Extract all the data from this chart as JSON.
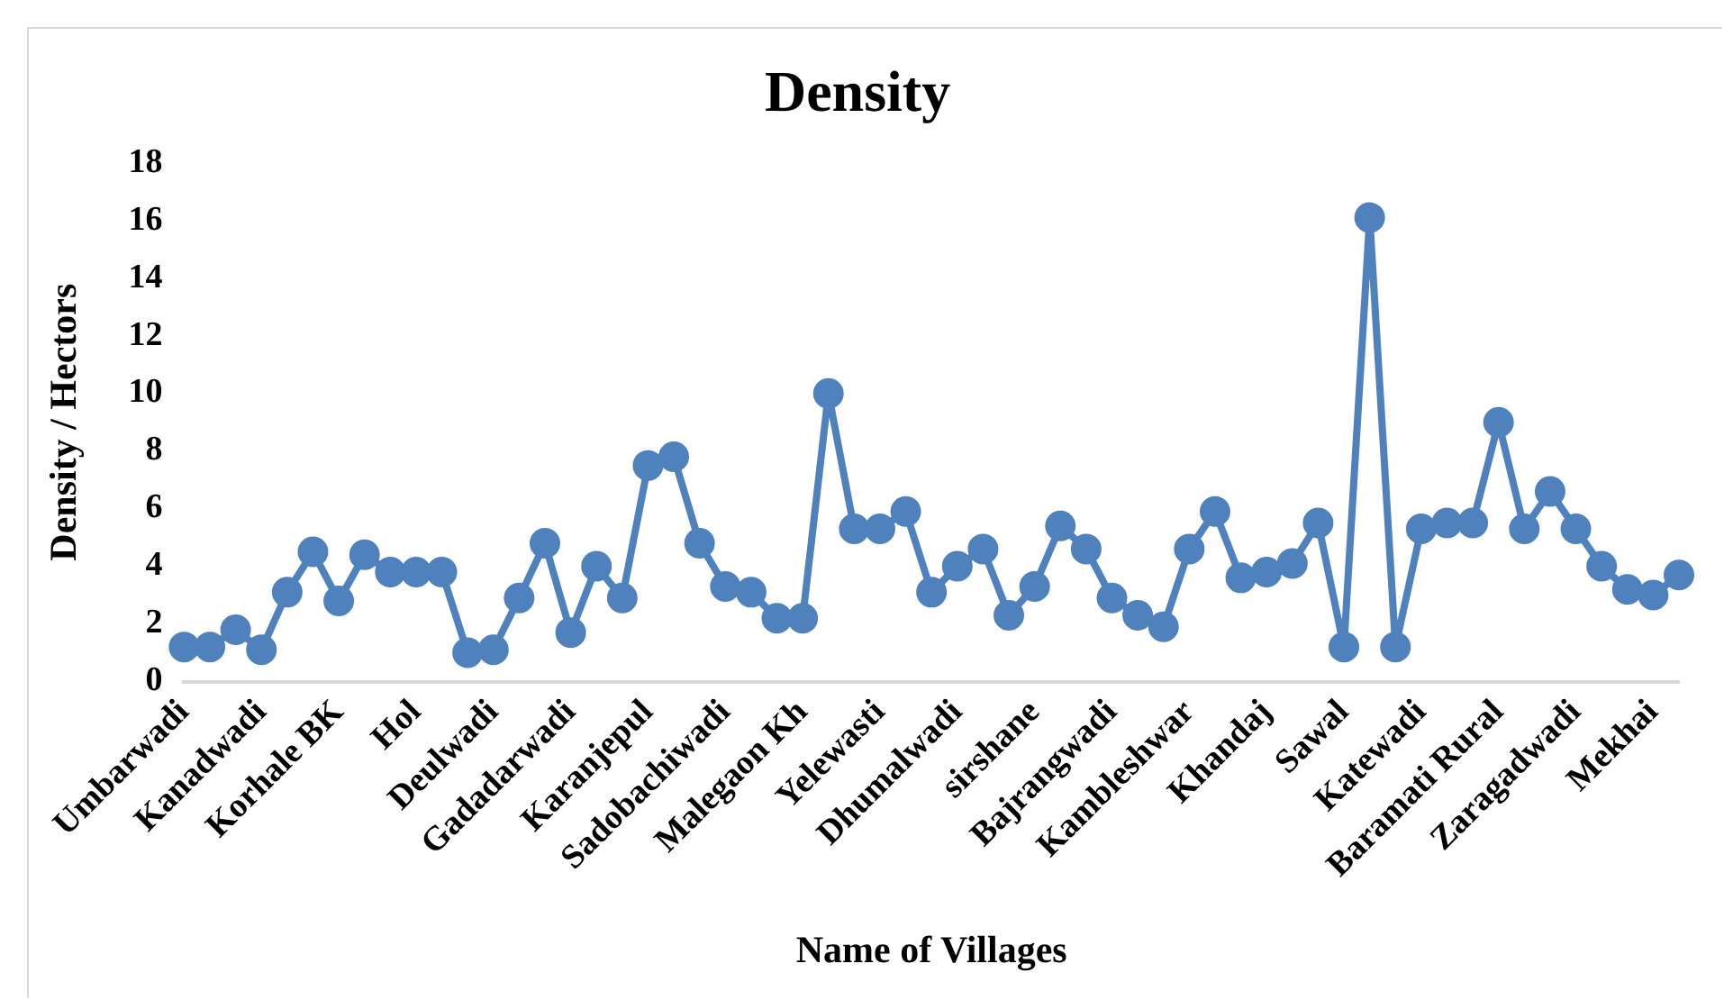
{
  "chart_data": {
    "type": "line",
    "title": "Density",
    "xlabel": "Name of Villages",
    "ylabel": "Density / Hectors",
    "categories": [
      "Umbarwadi",
      null,
      null,
      "Kanadwadi",
      null,
      null,
      "Korhale BK",
      null,
      null,
      "Hol",
      null,
      null,
      "Deulwadi",
      null,
      null,
      "Gadadarwadi",
      null,
      null,
      "Karanjepul",
      null,
      null,
      "Sadobachiwadi",
      null,
      null,
      "Malegaon Kh",
      null,
      null,
      "Yelewasti",
      null,
      null,
      "Dhumalwadi",
      null,
      null,
      "sirshane",
      null,
      null,
      "Bajrangwadi",
      null,
      null,
      "Kambleshwar",
      null,
      null,
      "Khandaj",
      null,
      null,
      "Sawal",
      null,
      null,
      "Katewadi",
      null,
      null,
      "Baramati Rural",
      null,
      null,
      "Zaragadwadi",
      null,
      null,
      "Mekhai",
      null
    ],
    "series": [
      {
        "color": "#4f81bd",
        "values": [
          1.2,
          1.2,
          1.8,
          1.1,
          3.1,
          4.5,
          2.8,
          4.4,
          3.8,
          3.8,
          3.8,
          1.0,
          1.1,
          2.9,
          4.8,
          1.7,
          4.0,
          2.9,
          7.5,
          7.8,
          4.8,
          3.3,
          3.1,
          2.2,
          2.2,
          10.0,
          5.3,
          5.3,
          5.9,
          3.1,
          4.0,
          4.6,
          2.3,
          3.3,
          5.4,
          4.6,
          2.9,
          2.3,
          1.9,
          4.6,
          5.9,
          3.6,
          3.8,
          4.1,
          5.5,
          1.2,
          16.1,
          1.2,
          5.3,
          5.5,
          5.5,
          9.0,
          5.3,
          6.6,
          5.3,
          4.0,
          3.2,
          3.0,
          3.7
        ]
      }
    ],
    "ylim": [
      0,
      18
    ],
    "yticks": [
      0,
      2,
      4,
      6,
      8,
      10,
      12,
      14,
      16,
      18
    ],
    "grid": false,
    "legend": false,
    "marker": "circle",
    "line_style": "solid"
  }
}
